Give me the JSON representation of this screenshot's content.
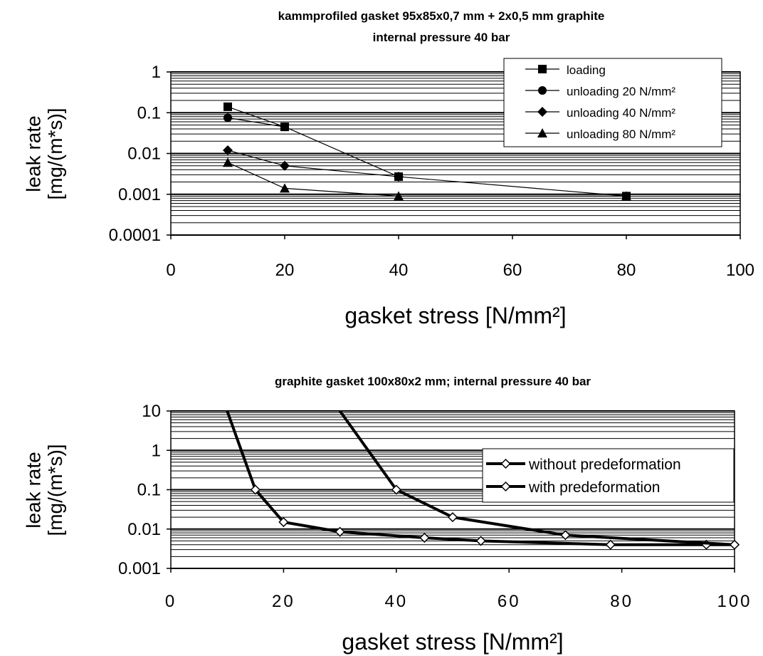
{
  "chart_data": [
    {
      "type": "line",
      "title": "kammprofiled gasket 95x85x0,7 mm + 2x0,5 mm graphite",
      "subtitle": "internal pressure 40 bar",
      "xlabel": "gasket stress [N/mm²]",
      "ylabel": "leak rate [mg/(m*s)]",
      "xlim": [
        0,
        100
      ],
      "ylim": [
        0.0001,
        1
      ],
      "yscale": "log",
      "grid": true,
      "legend_position": "top-right",
      "x_ticks": [
        "0",
        "20",
        "40",
        "60",
        "80",
        "100"
      ],
      "y_ticks": [
        "1",
        "0.1",
        "0.01",
        "0.001",
        "0.0001"
      ],
      "series": [
        {
          "name": "loading",
          "marker": "square",
          "x": [
            10,
            20,
            40,
            80
          ],
          "y": [
            0.14,
            0.045,
            0.0027,
            0.0009
          ]
        },
        {
          "name": "unloading 20 N/mm²",
          "marker": "circle",
          "x": [
            10,
            20
          ],
          "y": [
            0.075,
            0.045
          ]
        },
        {
          "name": "unloading 40 N/mm²",
          "marker": "diamond",
          "x": [
            10,
            20,
            40
          ],
          "y": [
            0.012,
            0.005,
            0.0027
          ]
        },
        {
          "name": "unloading 80 N/mm²",
          "marker": "triangle",
          "x": [
            10,
            20,
            40,
            80
          ],
          "y": [
            0.006,
            0.0014,
            0.0009,
            0.0009
          ]
        }
      ]
    },
    {
      "type": "line",
      "title": "graphite gasket 100x80x2 mm; internal pressure 40 bar",
      "xlabel": "gasket stress [N/mm²]",
      "ylabel": "leak rate [mg/(m*s)]",
      "xlim": [
        0,
        100
      ],
      "ylim": [
        0.001,
        10
      ],
      "yscale": "log",
      "grid": true,
      "legend_position": "right",
      "x_ticks": [
        "0",
        "20",
        "40",
        "60",
        "80",
        "100"
      ],
      "y_ticks": [
        "10",
        "1",
        "0.1",
        "0.01",
        "0.001"
      ],
      "series": [
        {
          "name": "without predeformation",
          "marker": "open-diamond",
          "x": [
            10,
            15,
            20,
            30,
            45,
            55,
            78,
            95,
            100
          ],
          "y": [
            10,
            0.1,
            0.015,
            0.0085,
            0.006,
            0.005,
            0.004,
            0.004,
            0.004
          ]
        },
        {
          "name": "with predeformation",
          "marker": "open-diamond",
          "x": [
            30,
            40,
            50,
            70,
            100
          ],
          "y": [
            10,
            0.1,
            0.02,
            0.007,
            0.004
          ]
        }
      ]
    }
  ]
}
